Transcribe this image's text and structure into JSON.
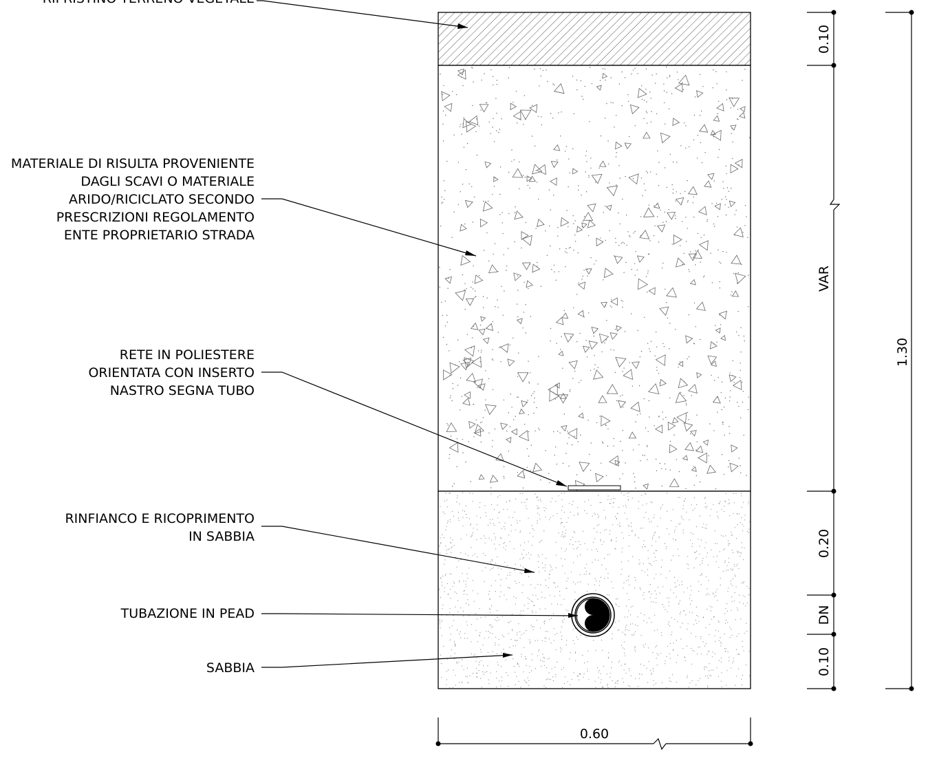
{
  "labels": {
    "topsoil": [
      "RIPRISTINO TERRENO VEGETALE"
    ],
    "backfill": [
      "MATERIALE DI RISULTA PROVENIENTE",
      "DAGLI SCAVI O MATERIALE",
      "ARIDO/RICICLATO SECONDO",
      "PRESCRIZIONI REGOLAMENTO",
      "ENTE PROPRIETARIO STRADA"
    ],
    "mesh": [
      "RETE IN POLIESTERE",
      "ORIENTATA CON INSERTO",
      "NASTRO SEGNA TUBO"
    ],
    "sand_cover": [
      "RINFIANCO E RICOPRIMENTO",
      "IN SABBIA"
    ],
    "pipe": [
      "TUBAZIONE IN PEAD"
    ],
    "sand_bed": [
      "SABBIA"
    ]
  },
  "dimensions": {
    "top_layer": "0.10",
    "variable": "VAR",
    "sand_cover": "0.20",
    "pipe_dn": "DN",
    "bed": "0.10",
    "total_depth": "1.30",
    "width": "0.60"
  },
  "colors": {
    "line": "#000000",
    "hatch": "#555555",
    "aggregate": "#666666",
    "stipple": "#888888"
  }
}
